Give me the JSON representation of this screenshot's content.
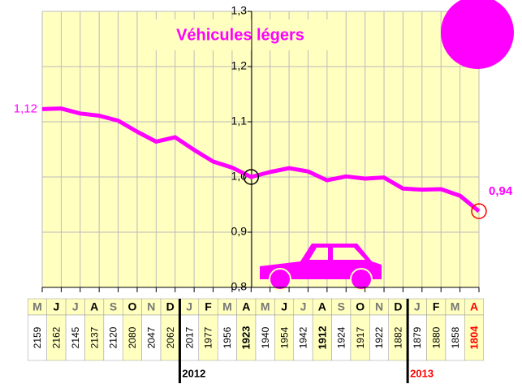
{
  "chart_data": {
    "type": "line",
    "title": "Véhicules légers",
    "categories": [
      "M",
      "J",
      "J",
      "A",
      "S",
      "O",
      "N",
      "D",
      "J",
      "F",
      "M",
      "A",
      "M",
      "J",
      "J",
      "A",
      "S",
      "O",
      "N",
      "D",
      "J",
      "F",
      "M",
      "A"
    ],
    "series": [
      {
        "color": "#ff00ff",
        "values": [
          1.123,
          1.124,
          1.115,
          1.111,
          1.102,
          1.082,
          1.064,
          1.072,
          1.049,
          1.028,
          1.017,
          1.0,
          1.009,
          1.016,
          1.01,
          0.994,
          1.001,
          0.997,
          0.999,
          0.979,
          0.977,
          0.978,
          0.966,
          0.938
        ],
        "value_labels": [
          "1,12",
          null,
          null,
          null,
          null,
          null,
          null,
          null,
          null,
          null,
          null,
          null,
          null,
          null,
          null,
          null,
          null,
          null,
          null,
          null,
          null,
          null,
          null,
          "0,94"
        ]
      }
    ],
    "ylim": [
      0.8,
      1.3
    ],
    "yticks": [
      {
        "value": 0.8,
        "label": "0,8"
      },
      {
        "value": 0.9,
        "label": "0,9"
      },
      {
        "value": 1.0,
        "label": "1,0"
      },
      {
        "value": 1.1,
        "label": "1,1"
      },
      {
        "value": 1.2,
        "label": "1,2"
      },
      {
        "value": 1.3,
        "label": "1,3"
      }
    ],
    "grid": true,
    "markers": [
      {
        "index": 11,
        "color": "#000000"
      },
      {
        "index": 23,
        "color": "#ff0000"
      }
    ],
    "table": {
      "counts": [
        2159,
        2162,
        2145,
        2137,
        2120,
        2080,
        2047,
        2062,
        2017,
        1977,
        1956,
        1923,
        1940,
        1954,
        1942,
        1912,
        1924,
        1917,
        1922,
        1882,
        1879,
        1880,
        1858,
        1804
      ],
      "bold": [
        11,
        15,
        23
      ],
      "years": [
        {
          "label": "2012",
          "start": 8,
          "color": "#000000"
        },
        {
          "label": "2013",
          "start": 20,
          "color": "#ff0000"
        }
      ]
    }
  }
}
